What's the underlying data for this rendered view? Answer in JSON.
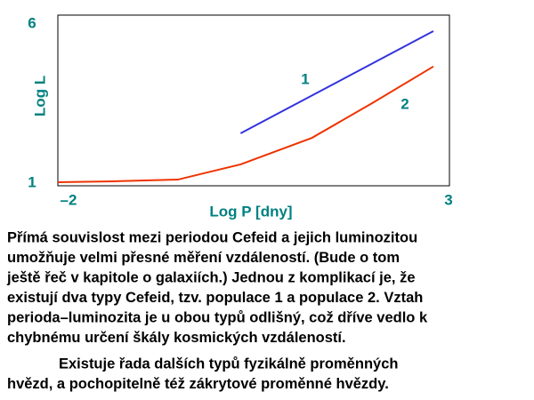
{
  "chart_data": {
    "type": "line",
    "ylabel": "Log L",
    "xlabel": "Log P [dny]",
    "xlim": [
      -2,
      3
    ],
    "ylim": [
      1,
      6
    ],
    "xticks": [
      {
        "value": -2,
        "label": "–2"
      },
      3
    ],
    "yticks": [
      1,
      6
    ],
    "series": [
      {
        "name": "1",
        "color": "#3333dd",
        "x": [
          0.36,
          2.85
        ],
        "values": [
          2.56,
          5.65
        ]
      },
      {
        "name": "2",
        "color": "#ee3300",
        "x": [
          -2,
          -1.25,
          -0.45,
          0.36,
          1.28,
          2.08,
          2.85
        ],
        "values": [
          1.08,
          1.11,
          1.16,
          1.62,
          2.42,
          3.5,
          4.58
        ]
      }
    ]
  },
  "text": {
    "paragraphs": [
      [
        "Přímá souvislost mezi periodou Cefeid a jejich luminozitou",
        "umožňuje velmi přesné měření vzdáleností. (Bude o tom",
        "ještě řeč v kapitole o galaxiích.) Jednou z komplikací je, že",
        "existují dva typy Cefeid, tzv. populace 1 a populace 2. Vztah",
        "perioda–luminozita je u obou typů odlišný, což dříve vedlo k",
        "chybnému určení škály kosmických vzdáleností."
      ],
      [
        "Existuje řada dalších typů fyzikálně proměnných",
        "hvězd, a pochopitelně též zákrytové proměnné hvězdy."
      ]
    ]
  }
}
